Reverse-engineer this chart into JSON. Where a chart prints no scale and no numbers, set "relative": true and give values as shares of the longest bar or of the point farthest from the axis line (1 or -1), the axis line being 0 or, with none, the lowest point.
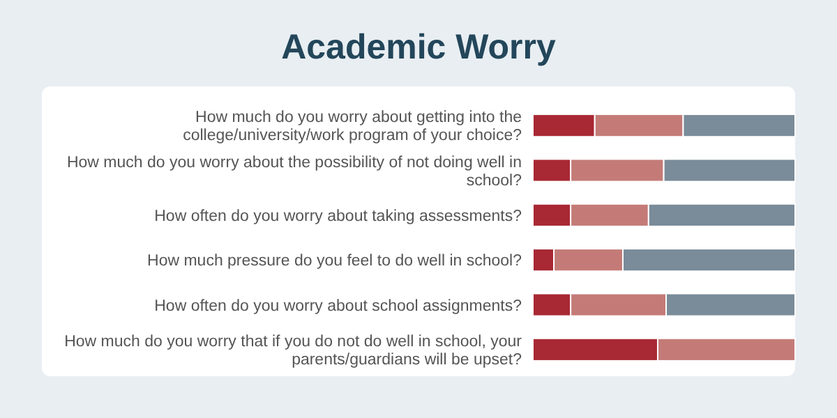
{
  "chart_data": {
    "type": "bar",
    "title": "Academic Worry",
    "orientation": "horizontal",
    "stacked": true,
    "relative": true,
    "categories": [
      "How much do you worry about getting into the college/university/work program of your choice?",
      "How much do you worry about the possibility of not doing well in school?",
      "How often do you worry about taking assessments?",
      "How much pressure do you feel to do well in school?",
      "How often do you worry about school assignments?",
      "How much do you worry that if you do not do well in school, your parents/guardians will be upset?"
    ],
    "series": [
      {
        "color": "#a82834",
        "values": [
          0.236,
          0.144,
          0.144,
          0.08,
          0.144,
          0.476
        ]
      },
      {
        "color": "#c47b78",
        "values": [
          0.337,
          0.355,
          0.297,
          0.263,
          0.364,
          0.524
        ]
      },
      {
        "color": "#7a8b99",
        "values": [
          0.427,
          0.501,
          0.559,
          0.657,
          0.492,
          null
        ]
      }
    ]
  }
}
